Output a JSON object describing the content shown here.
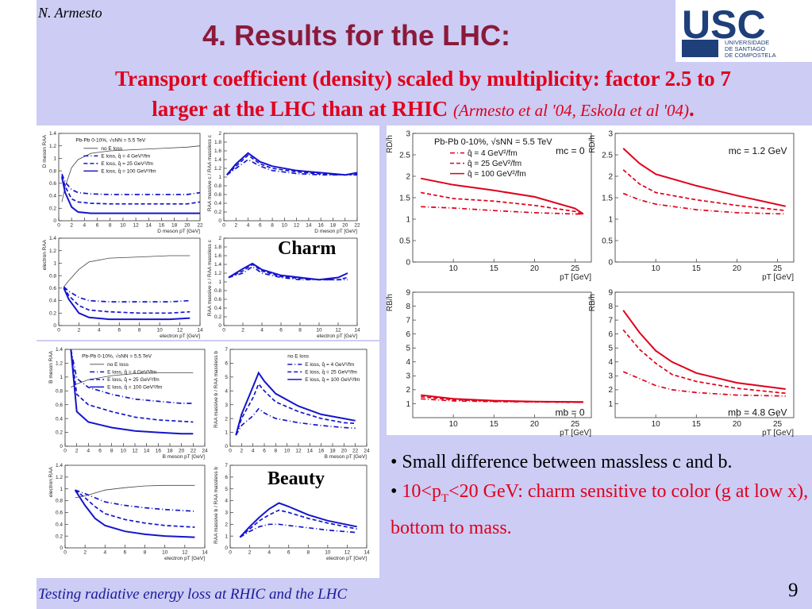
{
  "header": {
    "author": "N. Armesto",
    "title": "4. Results for the LHC:",
    "logo": {
      "text_big": "USC",
      "text_lines": [
        "UNIVERSIDADE",
        "DE SANTIAGO",
        "DE COMPOSTELA"
      ],
      "color": "#1e3f7a"
    }
  },
  "subtitle": {
    "line1": "Transport coefficient (density) scaled by multiplicity: factor 2.5 to 7",
    "line2": "larger at the LHC than at RHIC",
    "citation": "(Armesto et al '04, Eskola et al '04)",
    "end": "."
  },
  "labels": {
    "charm": "Charm",
    "beauty": "Beauty"
  },
  "bullets": {
    "b1": "• Small difference between massless c and b.",
    "b2_bullet": "• ",
    "b2_a": "10<p",
    "b2_sub": "T",
    "b2_b": "<20 GeV: charm sensitive to color (g at low x), bottom to mass."
  },
  "footer": {
    "text": "Testing radiative energy loss at RHIC and the LHC",
    "page": "9"
  },
  "chart_data": [
    {
      "type": "line",
      "id": "right-charm-massless",
      "ylabel": "RD/h",
      "xlabel": "pT [GeV]",
      "xlim": [
        5,
        27
      ],
      "ylim": [
        0,
        3
      ],
      "xticks": [
        10,
        15,
        20,
        25
      ],
      "yticks": [
        0,
        0.5,
        1,
        1.5,
        2,
        2.5,
        3
      ],
      "legend_title": "Pb-Pb 0-10%, √sNN = 5.5 TeV",
      "annotation": "mc = 0",
      "x": [
        6,
        10,
        15,
        20,
        25,
        26
      ],
      "series": [
        {
          "name": "q̂ = 4 GeV²/fm",
          "style": "dashdot",
          "values": [
            1.29,
            1.26,
            1.2,
            1.15,
            1.12,
            1.12
          ]
        },
        {
          "name": "q̂ = 25 GeV²/fm",
          "style": "dashed",
          "values": [
            1.62,
            1.48,
            1.42,
            1.32,
            1.18,
            1.1
          ]
        },
        {
          "name": "q̂ = 100 GeV²/fm",
          "style": "solid",
          "values": [
            1.95,
            1.8,
            1.67,
            1.52,
            1.25,
            1.12
          ]
        }
      ]
    },
    {
      "type": "line",
      "id": "right-charm-massive",
      "ylabel": "RD/h",
      "xlabel": "pT [GeV]",
      "xlim": [
        5,
        27
      ],
      "ylim": [
        0,
        3
      ],
      "xticks": [
        10,
        15,
        20,
        25
      ],
      "yticks": [
        0,
        0.5,
        1,
        1.5,
        2,
        2.5,
        3
      ],
      "annotation": "mc = 1.2 GeV",
      "x": [
        6,
        8,
        10,
        15,
        20,
        26
      ],
      "series": [
        {
          "name": "q̂ = 4 GeV²/fm",
          "style": "dashdot",
          "values": [
            1.6,
            1.45,
            1.35,
            1.22,
            1.15,
            1.12
          ]
        },
        {
          "name": "q̂ = 25 GeV²/fm",
          "style": "dashed",
          "values": [
            2.15,
            1.82,
            1.62,
            1.45,
            1.32,
            1.2
          ]
        },
        {
          "name": "q̂ = 100 GeV²/fm",
          "style": "solid",
          "values": [
            2.65,
            2.3,
            2.05,
            1.78,
            1.55,
            1.3
          ]
        }
      ]
    },
    {
      "type": "line",
      "id": "right-bottom-massless",
      "ylabel": "RB/h",
      "xlabel": "pT [GeV]",
      "xlim": [
        5,
        27
      ],
      "ylim": [
        0,
        9
      ],
      "xticks": [
        10,
        15,
        20,
        25
      ],
      "yticks": [
        1,
        2,
        3,
        4,
        5,
        6,
        7,
        8,
        9
      ],
      "annotation": "mb = 0",
      "x": [
        6,
        10,
        15,
        20,
        26
      ],
      "series": [
        {
          "name": "q̂ = 4 GeV²/fm",
          "style": "dashdot",
          "values": [
            1.35,
            1.2,
            1.15,
            1.12,
            1.1
          ]
        },
        {
          "name": "q̂ = 25 GeV²/fm",
          "style": "dashed",
          "values": [
            1.5,
            1.28,
            1.18,
            1.14,
            1.1
          ]
        },
        {
          "name": "q̂ = 100 GeV²/fm",
          "style": "solid",
          "values": [
            1.62,
            1.35,
            1.22,
            1.15,
            1.12
          ]
        }
      ]
    },
    {
      "type": "line",
      "id": "right-bottom-massive",
      "ylabel": "RB/h",
      "xlabel": "pT [GeV]",
      "xlim": [
        5,
        27
      ],
      "ylim": [
        0,
        9
      ],
      "xticks": [
        10,
        15,
        20,
        25
      ],
      "yticks": [
        1,
        2,
        3,
        4,
        5,
        6,
        7,
        8,
        9
      ],
      "annotation": "mb = 4.8 GeV",
      "x": [
        6,
        8,
        10,
        12,
        15,
        20,
        26
      ],
      "series": [
        {
          "name": "q̂ = 4 GeV²/fm",
          "style": "dashdot",
          "values": [
            3.3,
            2.8,
            2.3,
            2.0,
            1.8,
            1.62,
            1.55
          ]
        },
        {
          "name": "q̂ = 25 GeV²/fm",
          "style": "dashed",
          "values": [
            6.3,
            4.9,
            3.9,
            3.1,
            2.6,
            2.1,
            1.75
          ]
        },
        {
          "name": "q̂ = 100 GeV²/fm",
          "style": "solid",
          "values": [
            7.7,
            6.1,
            4.8,
            4.0,
            3.2,
            2.5,
            2.05
          ]
        }
      ]
    },
    {
      "type": "line",
      "id": "left-charm-D",
      "ylabel": "D meson RAA",
      "xlabel": "D meson pT [GeV]",
      "xlim": [
        0,
        22
      ],
      "ylim": [
        0,
        1.4
      ],
      "xticks": [
        0,
        2,
        4,
        6,
        8,
        10,
        12,
        14,
        16,
        18,
        20,
        22
      ],
      "yticks": [
        0,
        0.2,
        0.4,
        0.6,
        0.8,
        1,
        1.2,
        1.4
      ],
      "legend_title": "Pb-Pb 0-10%, √sNN = 5.5 TeV",
      "x": [
        0.5,
        1,
        2,
        3,
        5,
        8,
        12,
        16,
        20,
        22
      ],
      "series": [
        {
          "name": "no E loss",
          "style": "thin",
          "values": [
            0.3,
            0.55,
            0.85,
            0.98,
            1.08,
            1.12,
            1.14,
            1.16,
            1.18,
            1.2
          ]
        },
        {
          "name": "E loss, q̂ = 4 GeV²/fm",
          "style": "dashdot",
          "values": [
            0.75,
            0.62,
            0.5,
            0.45,
            0.43,
            0.42,
            0.42,
            0.42,
            0.42,
            0.45
          ]
        },
        {
          "name": "E loss, q̂ = 25 GeV²/fm",
          "style": "dashed",
          "values": [
            0.72,
            0.55,
            0.35,
            0.3,
            0.28,
            0.27,
            0.27,
            0.27,
            0.27,
            0.3
          ]
        },
        {
          "name": "E loss, q̂ = 100 GeV²/fm",
          "style": "solid",
          "values": [
            0.7,
            0.45,
            0.22,
            0.14,
            0.12,
            0.12,
            0.12,
            0.12,
            0.12,
            0.12
          ]
        }
      ]
    },
    {
      "type": "line",
      "id": "left-charm-D-ratio",
      "ylabel": "RAA massive c / RAA massless c",
      "xlabel": "D meson pT [GeV]",
      "xlim": [
        0,
        22
      ],
      "ylim": [
        0,
        2
      ],
      "xticks": [
        0,
        2,
        4,
        6,
        8,
        10,
        12,
        14,
        16,
        18,
        20,
        22
      ],
      "yticks": [
        0,
        0.2,
        0.4,
        0.6,
        0.8,
        1,
        1.2,
        1.4,
        1.6,
        1.8,
        2
      ],
      "x": [
        0.5,
        2,
        4,
        6,
        8,
        12,
        16,
        20,
        22
      ],
      "series": [
        {
          "name": "E loss, q̂ = 4 GeV²/fm",
          "style": "dashdot",
          "values": [
            1.05,
            1.2,
            1.4,
            1.25,
            1.15,
            1.08,
            1.05,
            1.05,
            1.05
          ]
        },
        {
          "name": "E loss, q̂ = 25 GeV²/fm",
          "style": "dashed",
          "values": [
            1.05,
            1.25,
            1.5,
            1.3,
            1.2,
            1.12,
            1.07,
            1.05,
            1.07
          ]
        },
        {
          "name": "E loss, q̂ = 100 GeV²/fm",
          "style": "solid",
          "values": [
            1.05,
            1.3,
            1.55,
            1.35,
            1.25,
            1.15,
            1.1,
            1.05,
            1.1
          ]
        }
      ]
    },
    {
      "type": "line",
      "id": "left-charm-electron",
      "ylabel": "electron RAA",
      "xlabel": "electron pT [GeV]",
      "xlim": [
        0,
        14
      ],
      "ylim": [
        0,
        1.4
      ],
      "xticks": [
        0,
        2,
        4,
        6,
        8,
        10,
        12,
        14
      ],
      "yticks": [
        0,
        0.2,
        0.4,
        0.6,
        0.8,
        1,
        1.2,
        1.4
      ],
      "x": [
        0.5,
        1,
        2,
        3,
        5,
        8,
        11,
        13
      ],
      "series": [
        {
          "name": "no E loss",
          "style": "thin",
          "values": [
            0.62,
            0.72,
            0.9,
            1.02,
            1.08,
            1.1,
            1.12,
            1.12
          ]
        },
        {
          "name": "E loss, q̂ = 4 GeV²/fm",
          "style": "dashdot",
          "values": [
            0.62,
            0.55,
            0.45,
            0.4,
            0.38,
            0.38,
            0.38,
            0.4
          ]
        },
        {
          "name": "E loss, q̂ = 25 GeV²/fm",
          "style": "dashed",
          "values": [
            0.62,
            0.48,
            0.32,
            0.25,
            0.22,
            0.2,
            0.2,
            0.22
          ]
        },
        {
          "name": "E loss, q̂ = 100 GeV²/fm",
          "style": "solid",
          "values": [
            0.6,
            0.42,
            0.2,
            0.13,
            0.1,
            0.1,
            0.1,
            0.12
          ]
        }
      ]
    },
    {
      "type": "line",
      "id": "left-charm-electron-ratio",
      "ylabel": "RAA massive c / RAA massless c",
      "xlabel": "electron pT [GeV]",
      "xlim": [
        0,
        14
      ],
      "ylim": [
        0,
        2
      ],
      "xticks": [
        0,
        2,
        4,
        6,
        8,
        10,
        12,
        14
      ],
      "yticks": [
        0,
        0.2,
        0.4,
        0.6,
        0.8,
        1,
        1.2,
        1.4,
        1.6,
        1.8,
        2
      ],
      "x": [
        0.5,
        2,
        3,
        4,
        6,
        8,
        10,
        12,
        13
      ],
      "series": [
        {
          "name": "E loss, q̂ = 4 GeV²/fm",
          "style": "dashdot",
          "values": [
            1.1,
            1.2,
            1.35,
            1.2,
            1.1,
            1.05,
            1.05,
            1.05,
            1.05
          ]
        },
        {
          "name": "E loss, q̂ = 25 GeV²/fm",
          "style": "dashed",
          "values": [
            1.1,
            1.25,
            1.4,
            1.25,
            1.12,
            1.08,
            1.05,
            1.05,
            1.1
          ]
        },
        {
          "name": "E loss, q̂ = 100 GeV²/fm",
          "style": "solid",
          "values": [
            1.1,
            1.3,
            1.42,
            1.28,
            1.15,
            1.1,
            1.05,
            1.1,
            1.2
          ]
        }
      ]
    },
    {
      "type": "line",
      "id": "left-beauty-B",
      "ylabel": "B meson RAA",
      "xlabel": "B meson pT [GeV]",
      "xlim": [
        0,
        24
      ],
      "ylim": [
        0,
        1.4
      ],
      "xticks": [
        0,
        2,
        4,
        6,
        8,
        10,
        12,
        14,
        16,
        18,
        20,
        22,
        24
      ],
      "yticks": [
        0,
        0.2,
        0.4,
        0.6,
        0.8,
        1,
        1.2,
        1.4
      ],
      "legend_title": "Pb-Pb 0-10%, √sNN = 5.5 TeV",
      "x": [
        1,
        2,
        4,
        8,
        12,
        16,
        20,
        22
      ],
      "series": [
        {
          "name": "no E loss",
          "style": "thin",
          "values": [
            0.85,
            0.9,
            0.96,
            1.02,
            1.05,
            1.06,
            1.06,
            1.06
          ]
        },
        {
          "name": "E loss, q̂ = 4 GeV²/fm",
          "style": "dashdot",
          "values": [
            1.4,
            0.98,
            0.85,
            0.75,
            0.68,
            0.65,
            0.62,
            0.62
          ]
        },
        {
          "name": "E loss, q̂ = 25 GeV²/fm",
          "style": "dashed",
          "values": [
            1.4,
            0.75,
            0.6,
            0.5,
            0.42,
            0.38,
            0.36,
            0.35
          ]
        },
        {
          "name": "E loss, q̂ = 100 GeV²/fm",
          "style": "solid",
          "values": [
            1.4,
            0.5,
            0.35,
            0.27,
            0.22,
            0.2,
            0.18,
            0.18
          ]
        }
      ]
    },
    {
      "type": "line",
      "id": "left-beauty-B-ratio",
      "ylabel": "RAA massive b / RAA massless b",
      "xlabel": "B meson pT [GeV]",
      "xlim": [
        0,
        24
      ],
      "ylim": [
        0,
        7
      ],
      "xticks": [
        0,
        2,
        4,
        6,
        8,
        10,
        12,
        14,
        16,
        18,
        20,
        22,
        24
      ],
      "yticks": [
        0,
        1,
        2,
        3,
        4,
        5,
        6,
        7
      ],
      "legend_title": "no E loss",
      "x": [
        1,
        2,
        4,
        5,
        6,
        8,
        12,
        16,
        20,
        22
      ],
      "series": [
        {
          "name": "E loss, q̂ = 4 GeV²/fm",
          "style": "dashdot",
          "values": [
            0.8,
            1.5,
            2.2,
            2.7,
            2.4,
            2.0,
            1.7,
            1.5,
            1.35,
            1.3
          ]
        },
        {
          "name": "E loss, q̂ = 25 GeV²/fm",
          "style": "dashed",
          "values": [
            0.8,
            2.0,
            3.5,
            4.5,
            4.0,
            3.2,
            2.5,
            2.0,
            1.7,
            1.65
          ]
        },
        {
          "name": "E loss, q̂ = 100 GeV²/fm",
          "style": "solid",
          "values": [
            0.8,
            2.3,
            4.3,
            5.3,
            4.7,
            3.8,
            2.9,
            2.3,
            2.0,
            1.85
          ]
        }
      ]
    },
    {
      "type": "line",
      "id": "left-beauty-electron",
      "ylabel": "electron RAA",
      "xlabel": "electron pT [GeV]",
      "xlim": [
        0,
        14
      ],
      "ylim": [
        0,
        1.4
      ],
      "xticks": [
        0,
        2,
        4,
        6,
        8,
        10,
        12,
        14
      ],
      "yticks": [
        0,
        0.2,
        0.4,
        0.6,
        0.8,
        1,
        1.2,
        1.4
      ],
      "x": [
        1,
        2,
        3,
        4,
        6,
        8,
        10,
        13
      ],
      "series": [
        {
          "name": "no E loss",
          "style": "thin",
          "values": [
            0.85,
            0.88,
            0.93,
            0.98,
            1.02,
            1.05,
            1.06,
            1.06
          ]
        },
        {
          "name": "E loss, q̂ = 4 GeV²/fm",
          "style": "dashdot",
          "values": [
            0.98,
            0.92,
            0.85,
            0.78,
            0.72,
            0.68,
            0.65,
            0.62
          ]
        },
        {
          "name": "E loss, q̂ = 25 GeV²/fm",
          "style": "dashed",
          "values": [
            0.98,
            0.85,
            0.7,
            0.58,
            0.48,
            0.42,
            0.38,
            0.35
          ]
        },
        {
          "name": "E loss, q̂ = 100 GeV²/fm",
          "style": "solid",
          "values": [
            0.98,
            0.72,
            0.5,
            0.38,
            0.28,
            0.23,
            0.2,
            0.18
          ]
        }
      ]
    },
    {
      "type": "line",
      "id": "left-beauty-electron-ratio",
      "ylabel": "RAA massive b / RAA massless b",
      "xlabel": "electron pT [GeV]",
      "xlim": [
        0,
        14
      ],
      "ylim": [
        0,
        7
      ],
      "xticks": [
        0,
        2,
        4,
        6,
        8,
        10,
        12,
        14
      ],
      "yticks": [
        0,
        1,
        2,
        3,
        4,
        5,
        6,
        7
      ],
      "x": [
        1,
        2,
        3,
        4,
        5,
        6,
        8,
        10,
        13
      ],
      "series": [
        {
          "name": "E loss, q̂ = 4 GeV²/fm",
          "style": "dashdot",
          "values": [
            0.9,
            1.4,
            1.8,
            2.0,
            2.0,
            1.9,
            1.7,
            1.5,
            1.3
          ]
        },
        {
          "name": "E loss, q̂ = 25 GeV²/fm",
          "style": "dashed",
          "values": [
            0.9,
            1.6,
            2.3,
            2.8,
            3.2,
            3.0,
            2.5,
            2.1,
            1.6
          ]
        },
        {
          "name": "E loss, q̂ = 100 GeV²/fm",
          "style": "solid",
          "values": [
            0.9,
            1.8,
            2.6,
            3.3,
            3.8,
            3.5,
            2.8,
            2.3,
            1.8
          ]
        }
      ]
    }
  ],
  "colors": {
    "title": "#8b1a3a",
    "subtitle": "#e0001b",
    "blue_series": "#1515cc",
    "red_series": "#e0001b",
    "background": "#ccccf5",
    "footer": "#1a1a9a"
  }
}
